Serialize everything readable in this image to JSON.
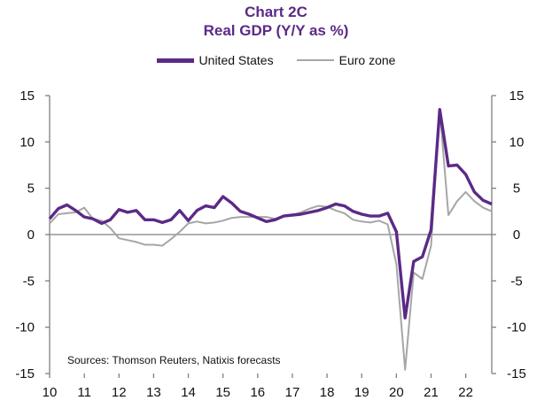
{
  "chart_data": {
    "type": "line",
    "title": "Chart 2C",
    "subtitle": "Real GDP  (Y/Y as %)",
    "legend_position": "top-center",
    "grid": false,
    "source_note": "Sources: Thomson Reuters, Natixis forecasts",
    "x_ticks": [
      "10",
      "11",
      "12",
      "13",
      "14",
      "15",
      "16",
      "17",
      "18",
      "19",
      "20",
      "21",
      "22"
    ],
    "y_ticks": [
      "15",
      "10",
      "5",
      "0",
      "-5",
      "-10",
      "-15"
    ],
    "xlim": [
      2010.0,
      2022.75
    ],
    "ylim": [
      -15,
      15
    ],
    "series": [
      {
        "name": "United States",
        "color": "#5b2a86",
        "x": [
          2010.0,
          2010.25,
          2010.5,
          2010.75,
          2011.0,
          2011.25,
          2011.5,
          2011.75,
          2012.0,
          2012.25,
          2012.5,
          2012.75,
          2013.0,
          2013.25,
          2013.5,
          2013.75,
          2014.0,
          2014.25,
          2014.5,
          2014.75,
          2015.0,
          2015.25,
          2015.5,
          2015.75,
          2016.0,
          2016.25,
          2016.5,
          2016.75,
          2017.0,
          2017.25,
          2017.5,
          2017.75,
          2018.0,
          2018.25,
          2018.5,
          2018.75,
          2019.0,
          2019.25,
          2019.5,
          2019.75,
          2020.0,
          2020.25,
          2020.5,
          2020.75,
          2021.0,
          2021.25,
          2021.5,
          2021.75,
          2022.0,
          2022.25,
          2022.5,
          2022.75
        ],
        "values": [
          1.7,
          2.8,
          3.2,
          2.6,
          1.9,
          1.7,
          1.2,
          1.6,
          2.7,
          2.4,
          2.6,
          1.6,
          1.6,
          1.3,
          1.6,
          2.6,
          1.5,
          2.6,
          3.1,
          2.9,
          4.1,
          3.4,
          2.5,
          2.2,
          1.8,
          1.4,
          1.6,
          2.0,
          2.1,
          2.2,
          2.4,
          2.6,
          2.9,
          3.3,
          3.1,
          2.5,
          2.2,
          2.0,
          2.0,
          2.3,
          0.3,
          -9.0,
          -2.9,
          -2.4,
          0.5,
          13.5,
          7.4,
          7.5,
          6.5,
          4.6,
          3.7,
          3.3
        ]
      },
      {
        "name": "Euro zone",
        "color": "#a6a6a6",
        "x": [
          2010.0,
          2010.25,
          2010.5,
          2010.75,
          2011.0,
          2011.25,
          2011.5,
          2011.75,
          2012.0,
          2012.25,
          2012.5,
          2012.75,
          2013.0,
          2013.25,
          2013.5,
          2013.75,
          2014.0,
          2014.25,
          2014.5,
          2014.75,
          2015.0,
          2015.25,
          2015.5,
          2015.75,
          2016.0,
          2016.25,
          2016.5,
          2016.75,
          2017.0,
          2017.25,
          2017.5,
          2017.75,
          2018.0,
          2018.25,
          2018.5,
          2018.75,
          2019.0,
          2019.25,
          2019.5,
          2019.75,
          2020.0,
          2020.25,
          2020.5,
          2020.75,
          2021.0,
          2021.25,
          2021.5,
          2021.75,
          2022.0,
          2022.25,
          2022.5,
          2022.75
        ],
        "values": [
          1.2,
          2.2,
          2.3,
          2.4,
          2.9,
          1.7,
          1.5,
          0.7,
          -0.4,
          -0.6,
          -0.8,
          -1.1,
          -1.1,
          -1.2,
          -0.5,
          0.3,
          1.2,
          1.4,
          1.2,
          1.3,
          1.5,
          1.8,
          1.9,
          1.9,
          1.9,
          1.9,
          1.7,
          2.0,
          2.1,
          2.4,
          2.8,
          3.1,
          3.0,
          2.6,
          2.3,
          1.6,
          1.4,
          1.3,
          1.5,
          1.1,
          -3.2,
          -14.6,
          -4.1,
          -4.8,
          -1.2,
          13.5,
          2.1,
          3.6,
          4.6,
          3.6,
          2.9,
          2.5
        ]
      }
    ]
  }
}
